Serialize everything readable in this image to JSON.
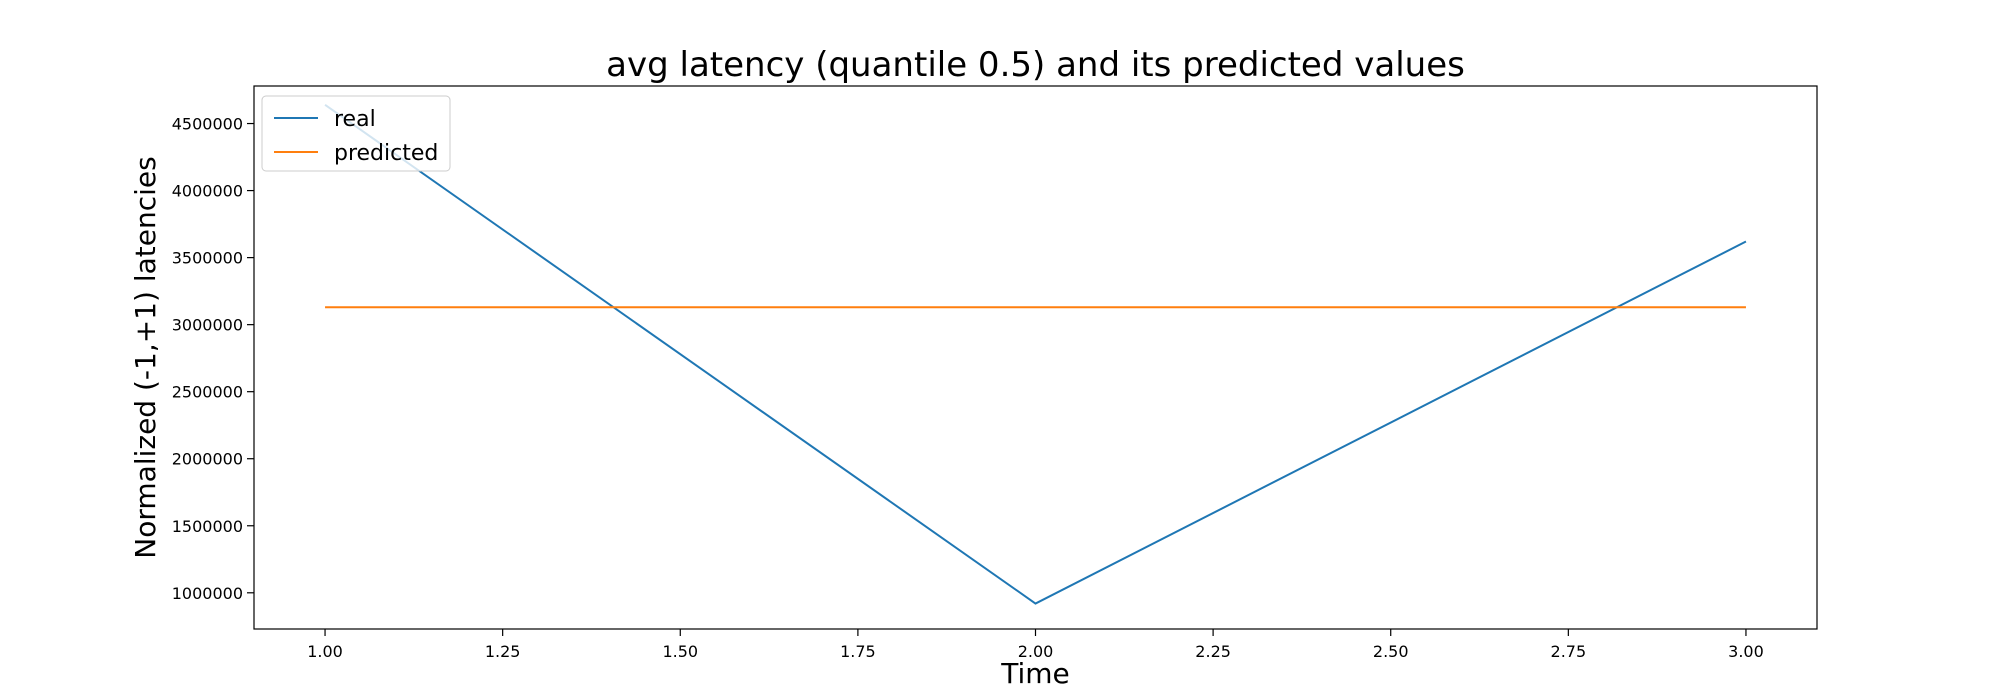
{
  "chart_data": {
    "type": "line",
    "title": "avg latency (quantile 0.5) and its predicted values",
    "xlabel": "Time",
    "ylabel": "Normalized (-1,+1) latencies",
    "xlim": [
      0.9,
      3.1
    ],
    "ylim": [
      730000,
      4780000
    ],
    "x_ticks": [
      1.0,
      1.25,
      1.5,
      1.75,
      2.0,
      2.25,
      2.5,
      2.75,
      3.0
    ],
    "x_tick_labels": [
      "1.00",
      "1.25",
      "1.50",
      "1.75",
      "2.00",
      "2.25",
      "2.50",
      "2.75",
      "3.00"
    ],
    "y_ticks": [
      1000000,
      1500000,
      2000000,
      2500000,
      3000000,
      3500000,
      4000000,
      4500000
    ],
    "y_tick_labels": [
      "1000000",
      "1500000",
      "2000000",
      "2500000",
      "3000000",
      "3500000",
      "4000000",
      "4500000"
    ],
    "grid": false,
    "legend_position": "top-left",
    "series": [
      {
        "name": "real",
        "color": "#1f77b4",
        "x": [
          1.0,
          2.0,
          3.0
        ],
        "y": [
          4640000,
          920000,
          3620000
        ]
      },
      {
        "name": "predicted",
        "color": "#ff7f0e",
        "x": [
          1.0,
          2.0,
          3.0
        ],
        "y": [
          3130000,
          3130000,
          3130000
        ]
      }
    ]
  }
}
